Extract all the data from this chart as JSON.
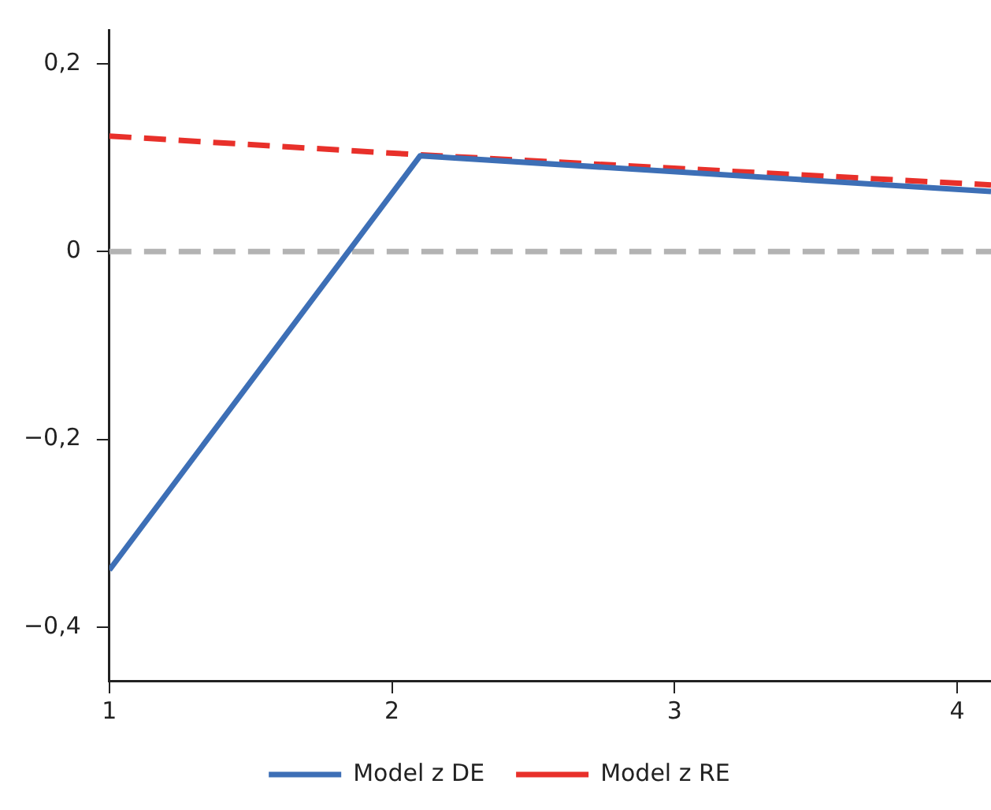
{
  "chart_data": {
    "type": "line",
    "x": [
      1,
      2.1,
      4.12
    ],
    "series": [
      {
        "name": "Model z DE",
        "color": "#3d6fb6",
        "values": [
          -0.339,
          0.102,
          0.064
        ],
        "line_style": "solid"
      },
      {
        "name": "Model z RE",
        "color": "#e8302a",
        "values": [
          0.123,
          0.103,
          0.071
        ],
        "line_style": "dashed"
      }
    ],
    "xlim": [
      1,
      4.12
    ],
    "xticks": [
      1,
      2,
      3,
      4
    ],
    "ylim": [
      -0.457,
      0.236
    ],
    "yticks": [
      {
        "value": -0.4,
        "label": "−0,4"
      },
      {
        "value": -0.2,
        "label": "−0,2"
      },
      {
        "value": 0,
        "label": "0"
      },
      {
        "value": 0.2,
        "label": "0,2"
      }
    ],
    "ref_lines": [
      {
        "axis": "y",
        "value": 0,
        "color": "#b3b3b3",
        "line_style": "dashed"
      }
    ],
    "grid": false,
    "legend": "bottom",
    "marker": "none"
  }
}
